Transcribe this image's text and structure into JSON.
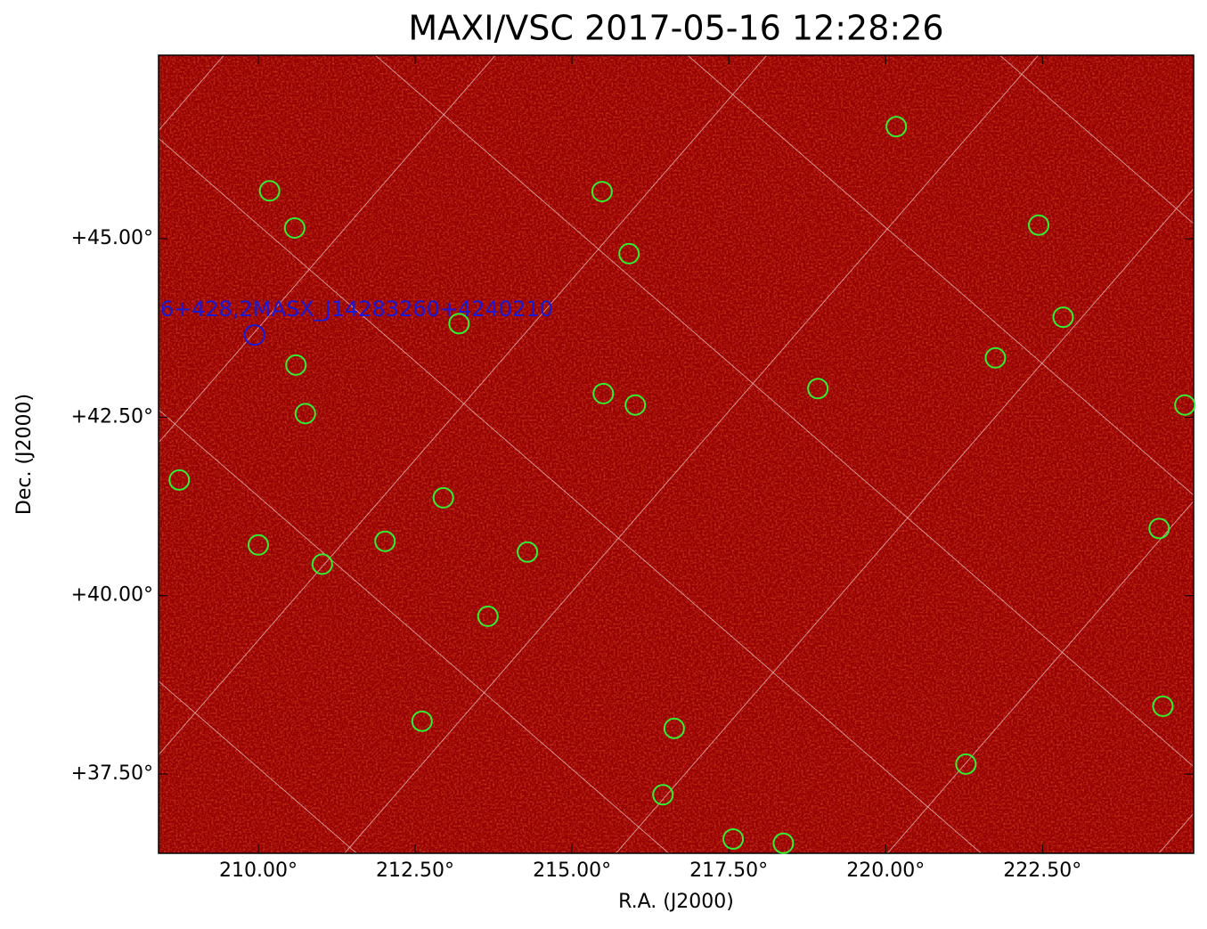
{
  "chart_data": {
    "type": "scatter",
    "title": "MAXI/VSC 2017-05-16 12:28:26",
    "x_label": "R.A. (J2000)",
    "y_label": "Dec. (J2000)",
    "x": [
      210.18,
      210.58,
      220.17,
      215.48,
      215.91,
      222.44,
      213.2,
      222.83,
      210.6,
      221.75,
      210.75,
      215.5,
      216.01,
      218.92,
      224.77,
      208.74,
      212.95,
      210.0,
      212.02,
      211.02,
      214.29,
      224.36,
      213.66,
      212.61,
      216.63,
      216.45,
      221.28,
      224.42,
      217.57,
      218.37
    ],
    "y": [
      45.67,
      45.15,
      46.57,
      45.66,
      44.79,
      45.19,
      43.81,
      43.9,
      43.23,
      43.33,
      42.55,
      42.83,
      42.67,
      42.9,
      42.67,
      41.62,
      41.37,
      40.71,
      40.76,
      40.44,
      40.61,
      40.94,
      39.71,
      38.24,
      38.14,
      37.21,
      37.64,
      38.45,
      36.59,
      36.53
    ],
    "color": "#33ee33",
    "annotations": [
      {
        "text": "6+428,2MASX_J14283260+4240210",
        "x": 209.94,
        "y": 43.65,
        "color": "#1a1ad6"
      }
    ],
    "xlim": [
      208.41,
      224.91
    ],
    "ylim": [
      36.39,
      47.57
    ],
    "xticks": [
      {
        "value": 210,
        "label": "210.00°"
      },
      {
        "value": 212.5,
        "label": "212.50°"
      },
      {
        "value": 215,
        "label": "215.00°"
      },
      {
        "value": 217.5,
        "label": "217.50°"
      },
      {
        "value": 220,
        "label": "220.00°"
      },
      {
        "value": 222.5,
        "label": "222.50°"
      }
    ],
    "yticks": [
      {
        "value": 37.5,
        "label": "+37.50°"
      },
      {
        "value": 40,
        "label": "+40.00°"
      },
      {
        "value": 42.5,
        "label": "+42.50°"
      },
      {
        "value": 45,
        "label": "+45.00°"
      }
    ]
  }
}
